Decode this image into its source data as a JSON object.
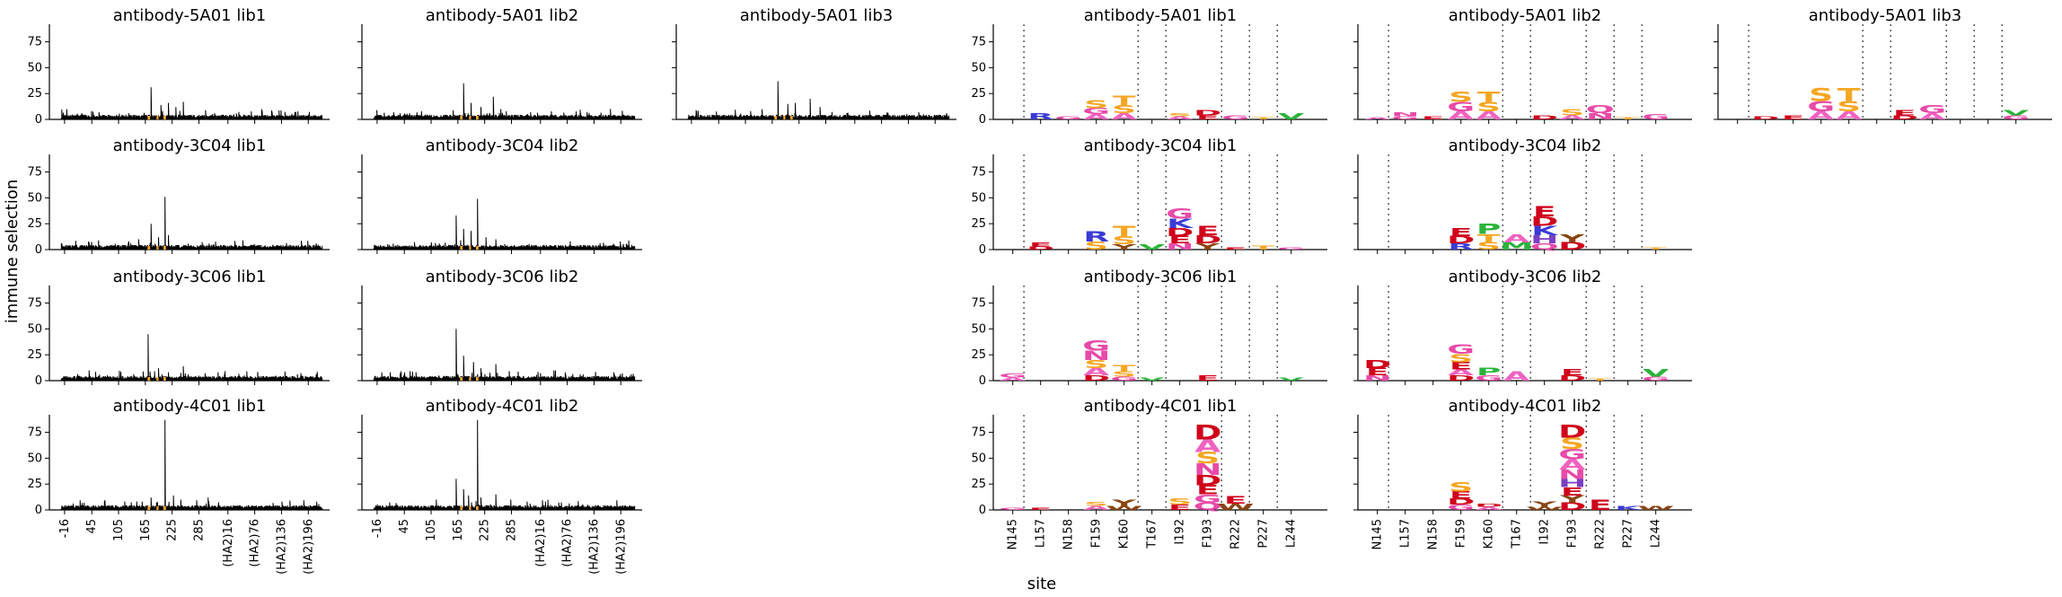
{
  "figure": {
    "ylabel": "immune selection",
    "xlabel": "site"
  },
  "chart_data": {
    "type": "line",
    "ylim": [
      0,
      92
    ],
    "yticks": [
      0,
      25,
      50,
      75
    ],
    "line_xticks": [
      "-16",
      "45",
      "105",
      "165",
      "225",
      "285",
      "(HA2)16",
      "(HA2)76",
      "(HA2)136",
      "(HA2)196"
    ],
    "logo_sites": [
      "N145",
      "L157",
      "N158",
      "F159",
      "K160",
      "T167",
      "I192",
      "F193",
      "R222",
      "P227",
      "L244"
    ],
    "colors": {
      "line": "#000000",
      "highlight": "#f5a623"
    },
    "line_panels": [
      {
        "title": "antibody-5A01 lib1",
        "row": 0,
        "col": 0,
        "peaks": [
          [
            165,
            31
          ],
          [
            185,
            14
          ],
          [
            200,
            16
          ],
          [
            215,
            12
          ],
          [
            230,
            17
          ],
          [
            -5,
            10
          ],
          [
            60,
            7
          ],
          [
            120,
            6
          ]
        ]
      },
      {
        "title": "antibody-5A01 lib2",
        "row": 0,
        "col": 1,
        "peaks": [
          [
            165,
            35
          ],
          [
            180,
            16
          ],
          [
            200,
            12
          ],
          [
            225,
            22
          ],
          [
            240,
            10
          ],
          [
            -10,
            9
          ],
          [
            80,
            8
          ],
          [
            300,
            7
          ]
        ]
      },
      {
        "title": "antibody-5A01 lib3",
        "row": 0,
        "col": 2,
        "peaks": [
          [
            165,
            37
          ],
          [
            185,
            15
          ],
          [
            200,
            16
          ],
          [
            230,
            20
          ],
          [
            250,
            12
          ],
          [
            0,
            9
          ],
          [
            110,
            8
          ]
        ]
      },
      {
        "title": "antibody-3C04 lib1",
        "row": 1,
        "col": 0,
        "peaks": [
          [
            165,
            25
          ],
          [
            193,
            51
          ],
          [
            180,
            12
          ],
          [
            200,
            14
          ],
          [
            120,
            8
          ],
          [
            140,
            10
          ],
          [
            40,
            7
          ],
          [
            350,
            9
          ]
        ]
      },
      {
        "title": "antibody-3C04 lib2",
        "row": 1,
        "col": 1,
        "peaks": [
          [
            150,
            33
          ],
          [
            193,
            49
          ],
          [
            165,
            20
          ],
          [
            180,
            18
          ],
          [
            210,
            12
          ],
          [
            230,
            10
          ],
          [
            100,
            7
          ],
          [
            380,
            8
          ]
        ]
      },
      {
        "title": "antibody-3C06 lib1",
        "row": 2,
        "col": 0,
        "peaks": [
          [
            159,
            45
          ],
          [
            180,
            12
          ],
          [
            230,
            14
          ],
          [
            200,
            8
          ],
          [
            40,
            10
          ],
          [
            300,
            8
          ]
        ]
      },
      {
        "title": "antibody-3C06 lib2",
        "row": 2,
        "col": 1,
        "peaks": [
          [
            150,
            50
          ],
          [
            165,
            24
          ],
          [
            185,
            18
          ],
          [
            200,
            12
          ],
          [
            230,
            16
          ],
          [
            350,
            10
          ],
          [
            0,
            8
          ]
        ]
      },
      {
        "title": "antibody-4C01 lib1",
        "row": 3,
        "col": 0,
        "peaks": [
          [
            193,
            87
          ],
          [
            165,
            12
          ],
          [
            210,
            14
          ],
          [
            225,
            10
          ],
          [
            280,
            12
          ],
          [
            30,
            7
          ]
        ]
      },
      {
        "title": "antibody-4C01 lib2",
        "row": 3,
        "col": 1,
        "peaks": [
          [
            193,
            87
          ],
          [
            150,
            30
          ],
          [
            165,
            20
          ],
          [
            175,
            14
          ],
          [
            200,
            12
          ],
          [
            230,
            15
          ],
          [
            260,
            10
          ]
        ]
      }
    ],
    "logo_panels": [
      {
        "title": "antibody-5A01 lib1",
        "row": 0,
        "col": 0,
        "stacks": [
          [],
          [
            {
              "l": "R",
              "v": 6
            }
          ],
          [
            {
              "l": "G",
              "v": 3
            }
          ],
          [
            {
              "l": "S",
              "v": 8
            },
            {
              "l": "G",
              "v": 6
            },
            {
              "l": "A",
              "v": 5
            }
          ],
          [
            {
              "l": "T",
              "v": 9
            },
            {
              "l": "S",
              "v": 8
            },
            {
              "l": "A",
              "v": 6
            }
          ],
          [],
          [
            {
              "l": "S",
              "v": 3
            },
            {
              "l": "A",
              "v": 3
            }
          ],
          [
            {
              "l": "D",
              "v": 5
            },
            {
              "l": "E",
              "v": 4
            }
          ],
          [
            {
              "l": "G",
              "v": 4
            }
          ],
          [
            {
              "l": "T",
              "v": 2
            }
          ],
          [
            {
              "l": "V",
              "v": 6
            }
          ]
        ]
      },
      {
        "title": "antibody-5A01 lib2",
        "row": 0,
        "col": 1,
        "stacks": [
          [
            {
              "l": "A",
              "v": 2
            }
          ],
          [
            {
              "l": "N",
              "v": 4
            },
            {
              "l": "G",
              "v": 3
            }
          ],
          [
            {
              "l": "E",
              "v": 3
            }
          ],
          [
            {
              "l": "S",
              "v": 10
            },
            {
              "l": "G",
              "v": 9
            },
            {
              "l": "A",
              "v": 8
            }
          ],
          [
            {
              "l": "T",
              "v": 10
            },
            {
              "l": "S",
              "v": 9
            },
            {
              "l": "A",
              "v": 8
            }
          ],
          [],
          [
            {
              "l": "D",
              "v": 4
            }
          ],
          [
            {
              "l": "S",
              "v": 6
            },
            {
              "l": "A",
              "v": 4
            }
          ],
          [
            {
              "l": "Q",
              "v": 8
            },
            {
              "l": "N",
              "v": 6
            }
          ],
          [
            {
              "l": "T",
              "v": 2
            }
          ],
          [
            {
              "l": "G",
              "v": 5
            }
          ]
        ]
      },
      {
        "title": "antibody-5A01 lib3",
        "row": 0,
        "col": 2,
        "stacks": [
          [],
          [
            {
              "l": "D",
              "v": 3
            }
          ],
          [
            {
              "l": "E",
              "v": 4
            }
          ],
          [
            {
              "l": "S",
              "v": 12
            },
            {
              "l": "G",
              "v": 10
            },
            {
              "l": "A",
              "v": 8
            }
          ],
          [
            {
              "l": "T",
              "v": 12
            },
            {
              "l": "S",
              "v": 10
            },
            {
              "l": "A",
              "v": 8
            }
          ],
          [],
          [
            {
              "l": "E",
              "v": 5
            },
            {
              "l": "D",
              "v": 4
            }
          ],
          [
            {
              "l": "G",
              "v": 8
            },
            {
              "l": "A",
              "v": 6
            }
          ],
          [],
          [],
          [
            {
              "l": "V",
              "v": 5
            },
            {
              "l": "G",
              "v": 4
            }
          ]
        ]
      },
      {
        "title": "antibody-3C04 lib1",
        "row": 1,
        "col": 0,
        "stacks": [
          [],
          [
            {
              "l": "E",
              "v": 4
            },
            {
              "l": "D",
              "v": 3
            }
          ],
          [],
          [
            {
              "l": "R",
              "v": 10
            },
            {
              "l": "S",
              "v": 8
            }
          ],
          [
            {
              "l": "T",
              "v": 10
            },
            {
              "l": "S",
              "v": 8
            },
            {
              "l": "Y",
              "v": 5
            }
          ],
          [
            {
              "l": "V",
              "v": 5
            }
          ],
          [
            {
              "l": "G",
              "v": 10
            },
            {
              "l": "K",
              "v": 9
            },
            {
              "l": "D",
              "v": 8
            },
            {
              "l": "E",
              "v": 7
            },
            {
              "l": "N",
              "v": 6
            }
          ],
          [
            {
              "l": "E",
              "v": 9
            },
            {
              "l": "D",
              "v": 8
            },
            {
              "l": "Y",
              "v": 6
            }
          ],
          [
            {
              "l": "E",
              "v": 2
            }
          ],
          [
            {
              "l": "T",
              "v": 4
            }
          ],
          [
            {
              "l": "G",
              "v": 2
            }
          ]
        ]
      },
      {
        "title": "antibody-3C04 lib2",
        "row": 1,
        "col": 1,
        "stacks": [
          [],
          [],
          [],
          [
            {
              "l": "E",
              "v": 8
            },
            {
              "l": "D",
              "v": 7
            },
            {
              "l": "R",
              "v": 6
            }
          ],
          [
            {
              "l": "P",
              "v": 10
            },
            {
              "l": "T",
              "v": 8
            },
            {
              "l": "S",
              "v": 7
            }
          ],
          [
            {
              "l": "A",
              "v": 8
            },
            {
              "l": "M",
              "v": 7
            }
          ],
          [
            {
              "l": "E",
              "v": 10
            },
            {
              "l": "D",
              "v": 9
            },
            {
              "l": "K",
              "v": 9
            },
            {
              "l": "H",
              "v": 8
            },
            {
              "l": "Q",
              "v": 6
            }
          ],
          [
            {
              "l": "Y",
              "v": 8
            },
            {
              "l": "D",
              "v": 7
            }
          ],
          [],
          [],
          [
            {
              "l": "T",
              "v": 2
            }
          ]
        ]
      },
      {
        "title": "antibody-3C06 lib1",
        "row": 2,
        "col": 0,
        "stacks": [
          [
            {
              "l": "G",
              "v": 4
            },
            {
              "l": "A",
              "v": 3
            }
          ],
          [],
          [],
          [
            {
              "l": "G",
              "v": 10
            },
            {
              "l": "N",
              "v": 9
            },
            {
              "l": "S",
              "v": 8
            },
            {
              "l": "A",
              "v": 7
            },
            {
              "l": "D",
              "v": 5
            }
          ],
          [
            {
              "l": "T",
              "v": 6
            },
            {
              "l": "S",
              "v": 5
            },
            {
              "l": "G",
              "v": 4
            }
          ],
          [
            {
              "l": "V",
              "v": 3
            }
          ],
          [],
          [
            {
              "l": "E",
              "v": 5
            }
          ],
          [],
          [],
          [
            {
              "l": "V",
              "v": 3
            }
          ]
        ]
      },
      {
        "title": "antibody-3C06 lib2",
        "row": 2,
        "col": 1,
        "stacks": [
          [
            {
              "l": "D",
              "v": 8
            },
            {
              "l": "E",
              "v": 7
            },
            {
              "l": "N",
              "v": 5
            }
          ],
          [],
          [],
          [
            {
              "l": "G",
              "v": 9
            },
            {
              "l": "S",
              "v": 8
            },
            {
              "l": "E",
              "v": 7
            },
            {
              "l": "A",
              "v": 6
            },
            {
              "l": "D",
              "v": 5
            }
          ],
          [
            {
              "l": "P",
              "v": 7
            },
            {
              "l": "G",
              "v": 5
            }
          ],
          [
            {
              "l": "A",
              "v": 9
            }
          ],
          [],
          [
            {
              "l": "E",
              "v": 6
            },
            {
              "l": "D",
              "v": 5
            }
          ],
          [
            {
              "l": "T",
              "v": 2
            }
          ],
          [],
          [
            {
              "l": "V",
              "v": 7
            },
            {
              "l": "G",
              "v": 4
            }
          ]
        ]
      },
      {
        "title": "antibody-4C01 lib1",
        "row": 3,
        "col": 0,
        "stacks": [
          [
            {
              "l": "G",
              "v": 2
            }
          ],
          [
            {
              "l": "E",
              "v": 2
            }
          ],
          [],
          [
            {
              "l": "S",
              "v": 4
            },
            {
              "l": "A",
              "v": 4
            }
          ],
          [
            {
              "l": "Y",
              "v": 6
            },
            {
              "l": "W",
              "v": 4
            }
          ],
          [],
          [
            {
              "l": "S",
              "v": 6
            },
            {
              "l": "E",
              "v": 5
            }
          ],
          [
            {
              "l": "D",
              "v": 14
            },
            {
              "l": "A",
              "v": 12
            },
            {
              "l": "S",
              "v": 11
            },
            {
              "l": "N",
              "v": 11
            },
            {
              "l": "D",
              "v": 10
            },
            {
              "l": "E",
              "v": 9
            },
            {
              "l": "G",
              "v": 8
            },
            {
              "l": "Q",
              "v": 7
            }
          ],
          [
            {
              "l": "E",
              "v": 7
            },
            {
              "l": "W",
              "v": 6
            }
          ],
          [],
          []
        ]
      },
      {
        "title": "antibody-4C01 lib2",
        "row": 3,
        "col": 1,
        "stacks": [
          [],
          [],
          [],
          [
            {
              "l": "S",
              "v": 9
            },
            {
              "l": "E",
              "v": 7
            },
            {
              "l": "D",
              "v": 6
            },
            {
              "l": "G",
              "v": 5
            }
          ],
          [
            {
              "l": "D",
              "v": 3
            },
            {
              "l": "A",
              "v": 3
            }
          ],
          [],
          [
            {
              "l": "Y",
              "v": 5
            },
            {
              "l": "W",
              "v": 3
            }
          ],
          [
            {
              "l": "D",
              "v": 12
            },
            {
              "l": "S",
              "v": 11
            },
            {
              "l": "G",
              "v": 10
            },
            {
              "l": "A",
              "v": 10
            },
            {
              "l": "N",
              "v": 9
            },
            {
              "l": "H",
              "v": 8
            },
            {
              "l": "E",
              "v": 8
            },
            {
              "l": "Y",
              "v": 7
            },
            {
              "l": "D",
              "v": 7
            }
          ],
          [
            {
              "l": "E",
              "v": 10
            }
          ],
          [
            {
              "l": "K",
              "v": 4
            }
          ],
          [
            {
              "l": "W",
              "v": 4
            }
          ]
        ]
      }
    ]
  }
}
